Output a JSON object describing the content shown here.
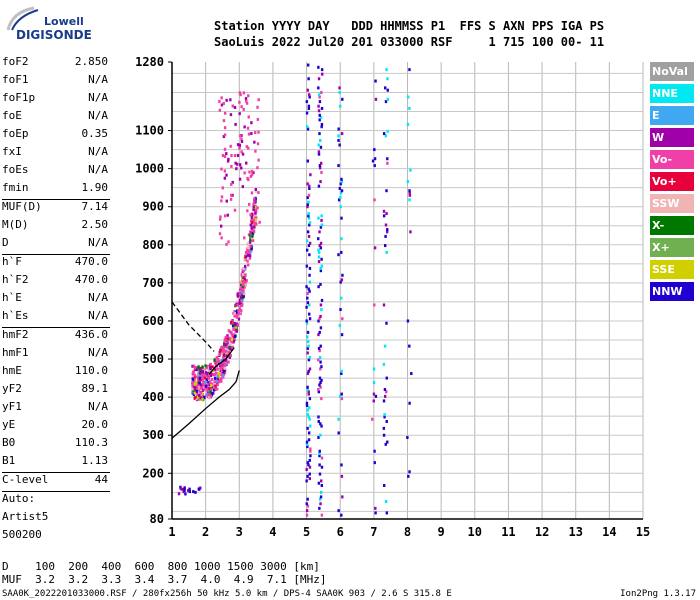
{
  "logo": {
    "top": "Lowell",
    "bottom": "DIGISONDE"
  },
  "header": {
    "line1": "Station YYYY DAY   DDD HHMMSS P1  FFS S AXN PPS IGA PS",
    "line2": "SaoLuis 2022 Jul20 201 033000 RSF     1 715 100 00- 11"
  },
  "params": [
    {
      "label": "foF2",
      "value": "2.850"
    },
    {
      "label": "foF1",
      "value": "N/A"
    },
    {
      "label": "foF1p",
      "value": "N/A"
    },
    {
      "label": "foE",
      "value": "N/A"
    },
    {
      "label": "foEp",
      "value": "0.35"
    },
    {
      "label": "fxI",
      "value": "N/A"
    },
    {
      "label": "foEs",
      "value": "N/A"
    },
    {
      "label": "fmin",
      "value": "1.90"
    },
    {
      "sep": true
    },
    {
      "label": "MUF(D)",
      "value": "7.14"
    },
    {
      "label": "M(D)",
      "value": "2.50"
    },
    {
      "label": "D",
      "value": "N/A"
    },
    {
      "sep": true
    },
    {
      "label": "h`F",
      "value": "470.0"
    },
    {
      "label": "h`F2",
      "value": "470.0"
    },
    {
      "label": "h`E",
      "value": "N/A"
    },
    {
      "label": "h`Es",
      "value": "N/A"
    },
    {
      "sep": true
    },
    {
      "label": "hmF2",
      "value": "436.0"
    },
    {
      "label": "hmF1",
      "value": "N/A"
    },
    {
      "label": "hmE",
      "value": "110.0"
    },
    {
      "label": "yF2",
      "value": "89.1"
    },
    {
      "label": "yF1",
      "value": "N/A"
    },
    {
      "label": "yE",
      "value": "20.0"
    },
    {
      "label": "B0",
      "value": "110.3"
    },
    {
      "label": "B1",
      "value": "1.13"
    },
    {
      "sep": true
    },
    {
      "label": "C-level",
      "value": "44"
    },
    {
      "sep": true
    },
    {
      "label": "Auto:",
      "value": ""
    },
    {
      "label": "Artist5",
      "value": ""
    },
    {
      "label": "500200",
      "value": ""
    }
  ],
  "legend": [
    {
      "label": "NoVal",
      "color": "#a0a0a0"
    },
    {
      "label": "NNE",
      "color": "#00e8f0"
    },
    {
      "label": "E",
      "color": "#40a8f0"
    },
    {
      "label": "W",
      "color": "#a000a8"
    },
    {
      "label": "Vo-",
      "color": "#f040a8"
    },
    {
      "label": "Vo+",
      "color": "#e8003c"
    },
    {
      "label": "SSW",
      "color": "#f0b4b4"
    },
    {
      "label": "X-",
      "color": "#007800"
    },
    {
      "label": "X+",
      "color": "#70b050"
    },
    {
      "label": "SSE",
      "color": "#d0d000"
    },
    {
      "label": "NNW",
      "color": "#2000d0"
    }
  ],
  "footer": {
    "d_line": "D    100  200  400  600  800 1000 1500 3000 [km]",
    "muf_line": "MUF  3.2  3.2  3.3  3.4  3.7  4.0  4.9  7.1 [MHz]",
    "file_line": "SAA0K_2022201033000.RSF / 280fx256h 50 kHz 5.0 km / DPS-4 SAA0K 903 / 2.6 S 315.8 E",
    "version": "Ion2Png 1.3.17"
  },
  "chart_data": {
    "type": "scatter",
    "title": "",
    "xlabel": "",
    "ylabel": "",
    "xlim": [
      1,
      15
    ],
    "ylim": [
      80,
      1280
    ],
    "x_ticks": [
      1,
      2,
      3,
      4,
      5,
      6,
      7,
      8,
      9,
      10,
      11,
      12,
      13,
      14,
      15
    ],
    "y_ticks": [
      80,
      200,
      300,
      400,
      500,
      600,
      700,
      800,
      900,
      1000,
      1100,
      1280
    ],
    "grid": true,
    "traces": [
      {
        "name": "profile",
        "style": "solid",
        "x": [
          1.0,
          1.5,
          2.0,
          2.4,
          2.7,
          2.9,
          2.92,
          2.95,
          3.0
        ],
        "y": [
          292,
          330,
          370,
          400,
          420,
          440,
          445,
          455,
          470
        ]
      },
      {
        "name": "echo-trace",
        "style": "solid",
        "x": [
          2.1,
          2.3,
          2.6,
          2.85
        ],
        "y": [
          460,
          480,
          500,
          530
        ]
      },
      {
        "name": "O-trace",
        "style": "dashed",
        "x": [
          1.0,
          1.5,
          2.0,
          2.25
        ],
        "y": [
          650,
          590,
          545,
          520
        ]
      }
    ]
  }
}
